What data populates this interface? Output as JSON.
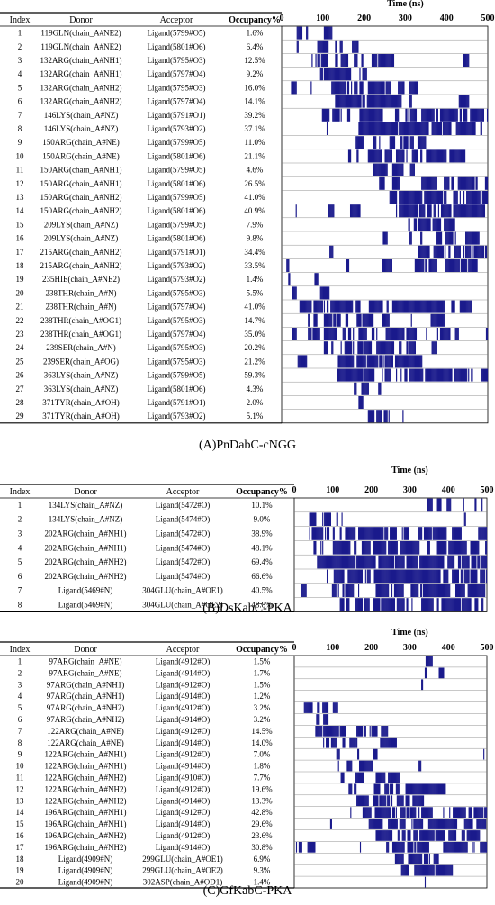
{
  "chart_data": [
    {
      "type": "table",
      "caption": "(A)PnDabC-cNGG",
      "columns": [
        "Index",
        "Donor",
        "Acceptor",
        "Occupancy%"
      ],
      "time_axis": {
        "title": "Time (ns)",
        "ticks": [
          0,
          100,
          200,
          300,
          400,
          500
        ],
        "range": [
          0,
          500
        ]
      },
      "rows": [
        {
          "index": "1",
          "donor": "119GLN(chain_A#NE2)",
          "acceptor": "Ligand(5799#O5)",
          "occupancy": "1.6%"
        },
        {
          "index": "2",
          "donor": "119GLN(chain_A#NE2)",
          "acceptor": "Ligand(5801#O6)",
          "occupancy": "6.4%"
        },
        {
          "index": "3",
          "donor": "132ARG(chain_A#NH1)",
          "acceptor": "Ligand(5795#O3)",
          "occupancy": "12.5%"
        },
        {
          "index": "4",
          "donor": "132ARG(chain_A#NH1)",
          "acceptor": "Ligand(5797#O4)",
          "occupancy": "9.2%"
        },
        {
          "index": "5",
          "donor": "132ARG(chain_A#NH2)",
          "acceptor": "Ligand(5795#O3)",
          "occupancy": "16.0%"
        },
        {
          "index": "6",
          "donor": "132ARG(chain_A#NH2)",
          "acceptor": "Ligand(5797#O4)",
          "occupancy": "14.1%"
        },
        {
          "index": "7",
          "donor": "146LYS(chain_A#NZ)",
          "acceptor": "Ligand(5791#O1)",
          "occupancy": "39.2%"
        },
        {
          "index": "8",
          "donor": "146LYS(chain_A#NZ)",
          "acceptor": "Ligand(5793#O2)",
          "occupancy": "37.1%"
        },
        {
          "index": "9",
          "donor": "150ARG(chain_A#NE)",
          "acceptor": "Ligand(5799#O5)",
          "occupancy": "11.0%"
        },
        {
          "index": "10",
          "donor": "150ARG(chain_A#NE)",
          "acceptor": "Ligand(5801#O6)",
          "occupancy": "21.1%"
        },
        {
          "index": "11",
          "donor": "150ARG(chain_A#NH1)",
          "acceptor": "Ligand(5799#O5)",
          "occupancy": "4.6%"
        },
        {
          "index": "12",
          "donor": "150ARG(chain_A#NH1)",
          "acceptor": "Ligand(5801#O6)",
          "occupancy": "26.5%"
        },
        {
          "index": "13",
          "donor": "150ARG(chain_A#NH2)",
          "acceptor": "Ligand(5799#O5)",
          "occupancy": "41.0%"
        },
        {
          "index": "14",
          "donor": "150ARG(chain_A#NH2)",
          "acceptor": "Ligand(5801#O6)",
          "occupancy": "40.9%"
        },
        {
          "index": "15",
          "donor": "209LYS(chain_A#NZ)",
          "acceptor": "Ligand(5799#O5)",
          "occupancy": "7.9%"
        },
        {
          "index": "16",
          "donor": "209LYS(chain_A#NZ)",
          "acceptor": "Ligand(5801#O6)",
          "occupancy": "9.8%"
        },
        {
          "index": "17",
          "donor": "215ARG(chain_A#NH2)",
          "acceptor": "Ligand(5791#O1)",
          "occupancy": "34.4%"
        },
        {
          "index": "18",
          "donor": "215ARG(chain_A#NH2)",
          "acceptor": "Ligand(5793#O2)",
          "occupancy": "33.5%"
        },
        {
          "index": "19",
          "donor": "235HIE(chain_A#NE2)",
          "acceptor": "Ligand(5793#O2)",
          "occupancy": "1.4%"
        },
        {
          "index": "20",
          "donor": "238THR(chain_A#N)",
          "acceptor": "Ligand(5795#O3)",
          "occupancy": "5.5%"
        },
        {
          "index": "21",
          "donor": "238THR(chain_A#N)",
          "acceptor": "Ligand(5797#O4)",
          "occupancy": "41.0%"
        },
        {
          "index": "22",
          "donor": "238THR(chain_A#OG1)",
          "acceptor": "Ligand(5795#O3)",
          "occupancy": "14.7%"
        },
        {
          "index": "23",
          "donor": "238THR(chain_A#OG1)",
          "acceptor": "Ligand(5797#O4)",
          "occupancy": "35.0%"
        },
        {
          "index": "24",
          "donor": "239SER(chain_A#N)",
          "acceptor": "Ligand(5795#O3)",
          "occupancy": "20.2%"
        },
        {
          "index": "25",
          "donor": "239SER(chain_A#OG)",
          "acceptor": "Ligand(5795#O3)",
          "occupancy": "21.2%"
        },
        {
          "index": "26",
          "donor": "363LYS(chain_A#NZ)",
          "acceptor": "Ligand(5799#O5)",
          "occupancy": "59.3%"
        },
        {
          "index": "27",
          "donor": "363LYS(chain_A#NZ)",
          "acceptor": "Ligand(5801#O6)",
          "occupancy": "4.3%"
        },
        {
          "index": "28",
          "donor": "371TYR(chain_A#OH)",
          "acceptor": "Ligand(5791#O1)",
          "occupancy": "2.0%"
        },
        {
          "index": "29",
          "donor": "371TYR(chain_A#OH)",
          "acceptor": "Ligand(5793#O2)",
          "occupancy": "5.1%"
        }
      ]
    },
    {
      "type": "table",
      "caption": "(B)DsKabC-PKA",
      "columns": [
        "Index",
        "Donor",
        "Acceptor",
        "Occupancy%"
      ],
      "time_axis": {
        "title": "Time (ns)",
        "ticks": [
          0,
          100,
          200,
          300,
          400,
          500
        ],
        "range": [
          0,
          500
        ]
      },
      "rows": [
        {
          "index": "1",
          "donor": "134LYS(chain_A#NZ)",
          "acceptor": "Ligand(5472#O)",
          "occupancy": "10.1%"
        },
        {
          "index": "2",
          "donor": "134LYS(chain_A#NZ)",
          "acceptor": "Ligand(5474#O)",
          "occupancy": "9.0%"
        },
        {
          "index": "3",
          "donor": "202ARG(chain_A#NH1)",
          "acceptor": "Ligand(5472#O)",
          "occupancy": "38.9%"
        },
        {
          "index": "4",
          "donor": "202ARG(chain_A#NH1)",
          "acceptor": "Ligand(5474#O)",
          "occupancy": "48.1%"
        },
        {
          "index": "5",
          "donor": "202ARG(chain_A#NH2)",
          "acceptor": "Ligand(5472#O)",
          "occupancy": "69.4%"
        },
        {
          "index": "6",
          "donor": "202ARG(chain_A#NH2)",
          "acceptor": "Ligand(5474#O)",
          "occupancy": "66.6%"
        },
        {
          "index": "7",
          "donor": "Ligand(5469#N)",
          "acceptor": "304GLU(chain_A#OE1)",
          "occupancy": "40.5%"
        },
        {
          "index": "8",
          "donor": "Ligand(5469#N)",
          "acceptor": "304GLU(chain_A#OE2)",
          "occupancy": "48.8%"
        }
      ]
    },
    {
      "type": "table",
      "caption": "(C)GfKabC-PKA",
      "columns": [
        "Index",
        "Donor",
        "Acceptor",
        "Occupancy%"
      ],
      "time_axis": {
        "title": "Time (ns)",
        "ticks": [
          0,
          100,
          200,
          300,
          400,
          500
        ],
        "range": [
          0,
          500
        ]
      },
      "rows": [
        {
          "index": "1",
          "donor": "97ARG(chain_A#NE)",
          "acceptor": "Ligand(4912#O)",
          "occupancy": "1.5%"
        },
        {
          "index": "2",
          "donor": "97ARG(chain_A#NE)",
          "acceptor": "Ligand(4914#O)",
          "occupancy": "1.7%"
        },
        {
          "index": "3",
          "donor": "97ARG(chain_A#NH1)",
          "acceptor": "Ligand(4912#O)",
          "occupancy": "1.5%"
        },
        {
          "index": "4",
          "donor": "97ARG(chain_A#NH1)",
          "acceptor": "Ligand(4914#O)",
          "occupancy": "1.2%"
        },
        {
          "index": "5",
          "donor": "97ARG(chain_A#NH2)",
          "acceptor": "Ligand(4912#O)",
          "occupancy": "3.2%"
        },
        {
          "index": "6",
          "donor": "97ARG(chain_A#NH2)",
          "acceptor": "Ligand(4914#O)",
          "occupancy": "3.2%"
        },
        {
          "index": "7",
          "donor": "122ARG(chain_A#NE)",
          "acceptor": "Ligand(4912#O)",
          "occupancy": "14.5%"
        },
        {
          "index": "8",
          "donor": "122ARG(chain_A#NE)",
          "acceptor": "Ligand(4914#O)",
          "occupancy": "14.0%"
        },
        {
          "index": "9",
          "donor": "122ARG(chain_A#NH1)",
          "acceptor": "Ligand(4912#O)",
          "occupancy": "7.0%"
        },
        {
          "index": "10",
          "donor": "122ARG(chain_A#NH1)",
          "acceptor": "Ligand(4914#O)",
          "occupancy": "1.8%"
        },
        {
          "index": "11",
          "donor": "122ARG(chain_A#NH2)",
          "acceptor": "Ligand(4910#O)",
          "occupancy": "7.7%"
        },
        {
          "index": "12",
          "donor": "122ARG(chain_A#NH2)",
          "acceptor": "Ligand(4912#O)",
          "occupancy": "19.6%"
        },
        {
          "index": "13",
          "donor": "122ARG(chain_A#NH2)",
          "acceptor": "Ligand(4914#O)",
          "occupancy": "13.3%"
        },
        {
          "index": "14",
          "donor": "196ARG(chain_A#NH1)",
          "acceptor": "Ligand(4912#O)",
          "occupancy": "42.8%"
        },
        {
          "index": "15",
          "donor": "196ARG(chain_A#NH1)",
          "acceptor": "Ligand(4914#O)",
          "occupancy": "29.6%"
        },
        {
          "index": "16",
          "donor": "196ARG(chain_A#NH2)",
          "acceptor": "Ligand(4912#O)",
          "occupancy": "23.6%"
        },
        {
          "index": "17",
          "donor": "196ARG(chain_A#NH2)",
          "acceptor": "Ligand(4914#O)",
          "occupancy": "30.8%"
        },
        {
          "index": "18",
          "donor": "Ligand(4909#N)",
          "acceptor": "299GLU(chain_A#OE1)",
          "occupancy": "6.9%"
        },
        {
          "index": "19",
          "donor": "Ligand(4909#N)",
          "acceptor": "299GLU(chain_A#OE2)",
          "occupancy": "9.3%"
        },
        {
          "index": "20",
          "donor": "Ligand(4909#N)",
          "acceptor": "302ASP(chain_A#OD1)",
          "occupancy": "1.4%"
        }
      ]
    }
  ],
  "colors": {
    "bar": "#1a1a8c",
    "rule": "#000000",
    "grid": "#c8c8c8"
  }
}
